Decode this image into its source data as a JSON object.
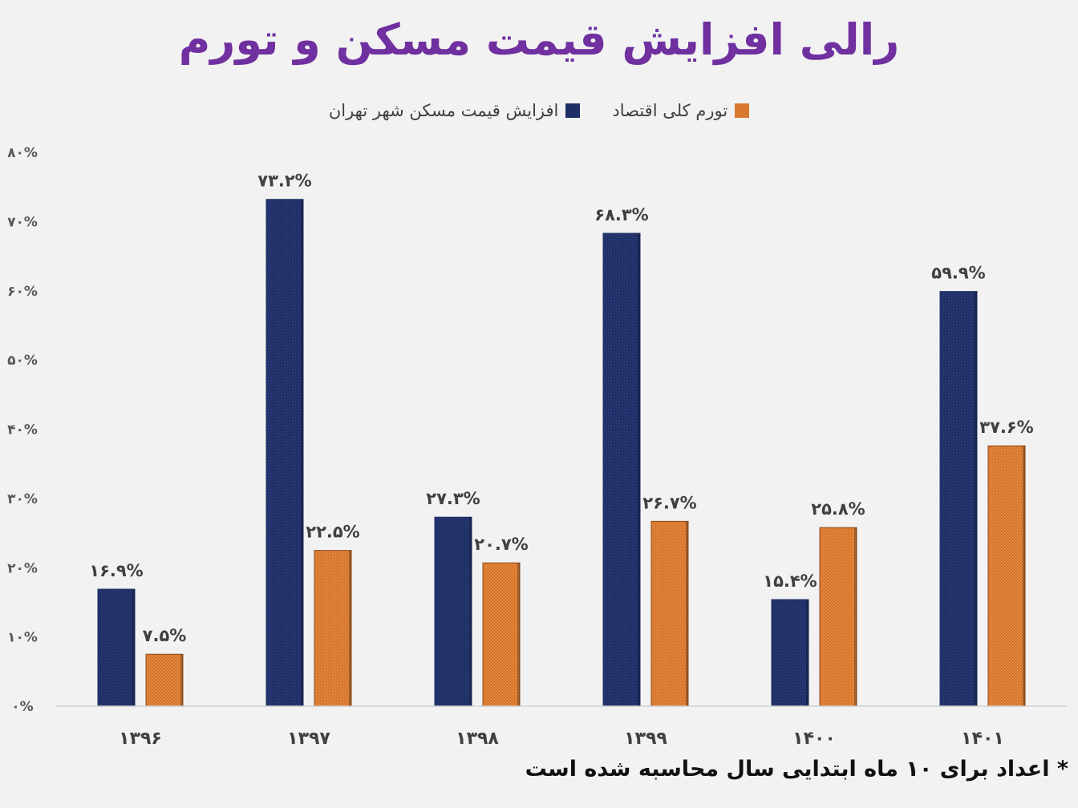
{
  "title": "رالی افزایش قیمت مسکن و تورم",
  "footnote": "* اعداد برای ۱۰ ماه ابتدایی سال محاسبه شده است",
  "colors": {
    "housing": "#1f2f66",
    "inflation": "#d9782f",
    "title": "#7030a0"
  },
  "legend": [
    {
      "key": "inflation",
      "label": "تورم کلی اقتصاد"
    },
    {
      "key": "housing",
      "label": "افزایش قیمت مسکن شهر تهران"
    }
  ],
  "chart_data": {
    "type": "bar",
    "categories": [
      "۱۳۹۶",
      "۱۳۹۷",
      "۱۳۹۸",
      "۱۳۹۹",
      "۱۴۰۰",
      "۱۴۰۱"
    ],
    "series": [
      {
        "name": "افزایش قیمت مسکن شهر تهران",
        "values": [
          16.9,
          73.2,
          27.3,
          68.3,
          15.4,
          59.9
        ],
        "labels": [
          "۱۶.۹%",
          "۷۳.۲%",
          "۲۷.۳%",
          "۶۸.۳%",
          "۱۵.۴%",
          "۵۹.۹%"
        ]
      },
      {
        "name": "تورم کلی اقتصاد",
        "values": [
          7.5,
          22.5,
          20.7,
          26.7,
          25.8,
          37.6
        ],
        "labels": [
          "۷.۵%",
          "۲۲.۵%",
          "۲۰.۷%",
          "۲۶.۷%",
          "۲۵.۸%",
          "۳۷.۶%"
        ]
      }
    ],
    "ylim": [
      0,
      80
    ],
    "yticks": [
      {
        "value": 0,
        "label": "۰%"
      },
      {
        "value": 10,
        "label": "۱۰%"
      },
      {
        "value": 20,
        "label": "۲۰%"
      },
      {
        "value": 30,
        "label": "۳۰%"
      },
      {
        "value": 40,
        "label": "۴۰%"
      },
      {
        "value": 50,
        "label": "۵۰%"
      },
      {
        "value": 60,
        "label": "۶۰%"
      },
      {
        "value": 70,
        "label": "۷۰%"
      },
      {
        "value": 80,
        "label": "۸۰%"
      }
    ],
    "grid": false,
    "legend_position": "top"
  }
}
